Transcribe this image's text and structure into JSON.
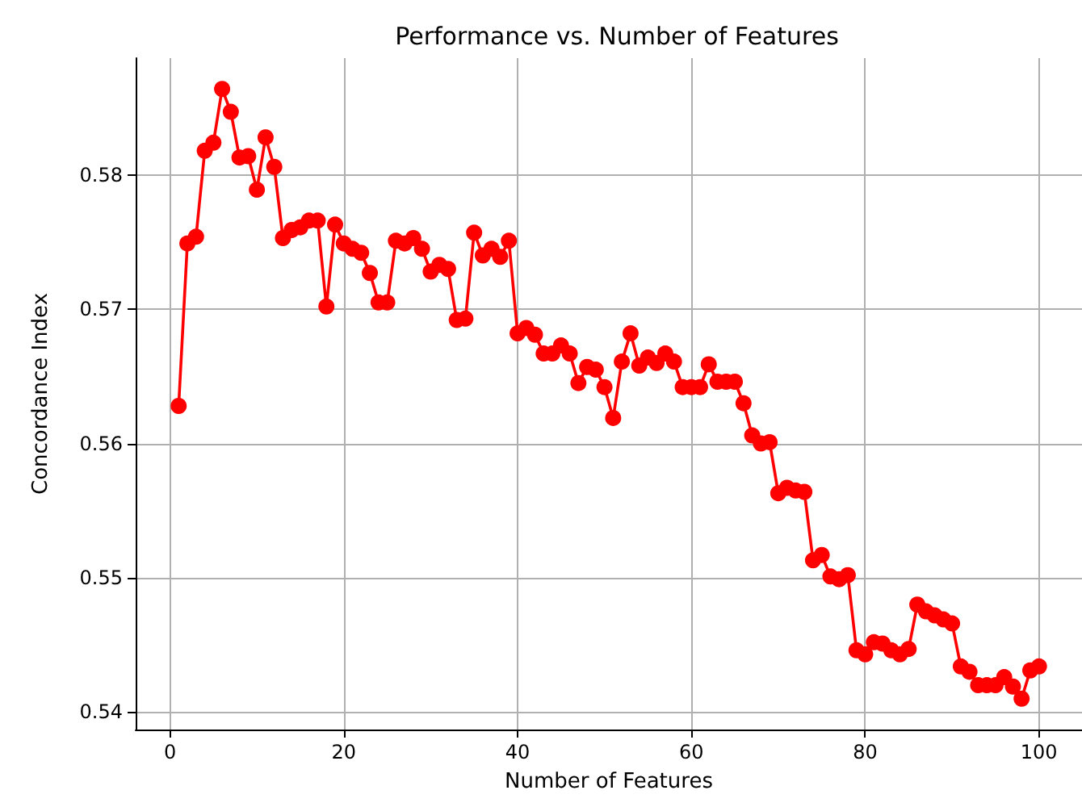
{
  "chart_data": {
    "type": "line",
    "title": "Performance vs. Number of Features",
    "xlabel": "Number of Features",
    "ylabel": "Concordance Index",
    "x": [
      1,
      2,
      3,
      4,
      5,
      6,
      7,
      8,
      9,
      10,
      11,
      12,
      13,
      14,
      15,
      16,
      17,
      18,
      19,
      20,
      21,
      22,
      23,
      24,
      25,
      26,
      27,
      28,
      29,
      30,
      31,
      32,
      33,
      34,
      35,
      36,
      37,
      38,
      39,
      40,
      41,
      42,
      43,
      44,
      45,
      46,
      47,
      48,
      49,
      50,
      51,
      52,
      53,
      54,
      55,
      56,
      57,
      58,
      59,
      60,
      61,
      62,
      63,
      64,
      65,
      66,
      67,
      68,
      69,
      70,
      71,
      72,
      73,
      74,
      75,
      76,
      77,
      78,
      79,
      80,
      81,
      82,
      83,
      84,
      85,
      86,
      87,
      88,
      89,
      90,
      91,
      92,
      93,
      94,
      95,
      96,
      97,
      98,
      99,
      100
    ],
    "series": [
      {
        "color": "#ff0000",
        "values": [
          0.5628,
          0.5749,
          0.5754,
          0.5818,
          0.5824,
          0.5864,
          0.5847,
          0.5813,
          0.5814,
          0.5789,
          0.5828,
          0.5806,
          0.5753,
          0.5759,
          0.5761,
          0.5766,
          0.5766,
          0.5702,
          0.5763,
          0.5749,
          0.5745,
          0.5742,
          0.5727,
          0.5705,
          0.5705,
          0.5751,
          0.5749,
          0.5753,
          0.5745,
          0.5728,
          0.5733,
          0.573,
          0.5692,
          0.5693,
          0.5757,
          0.574,
          0.5745,
          0.5739,
          0.5751,
          0.5682,
          0.5686,
          0.5681,
          0.5667,
          0.5667,
          0.5673,
          0.5667,
          0.5645,
          0.5657,
          0.5655,
          0.5642,
          0.5619,
          0.5661,
          0.5682,
          0.5658,
          0.5664,
          0.566,
          0.5667,
          0.5661,
          0.5642,
          0.5642,
          0.5642,
          0.5659,
          0.5646,
          0.5646,
          0.5646,
          0.563,
          0.5606,
          0.56,
          0.5601,
          0.5563,
          0.5567,
          0.5565,
          0.5564,
          0.5513,
          0.5517,
          0.5501,
          0.5499,
          0.5502,
          0.5446,
          0.5443,
          0.5452,
          0.5451,
          0.5446,
          0.5443,
          0.5447,
          0.548,
          0.5475,
          0.5472,
          0.5469,
          0.5466,
          0.5434,
          0.543,
          0.542,
          0.542,
          0.542,
          0.5426,
          0.5419,
          0.541,
          0.5431,
          0.5434
        ]
      }
    ],
    "xlim": [
      -3.95,
      104.95
    ],
    "xticks": [
      0,
      20,
      40,
      60,
      80,
      100
    ],
    "ylim": [
      0.5387,
      0.5887
    ],
    "yticks": [
      0.54,
      0.55,
      0.56,
      0.57,
      0.58
    ],
    "grid": true,
    "marker": "circle",
    "line_style": "solid"
  }
}
